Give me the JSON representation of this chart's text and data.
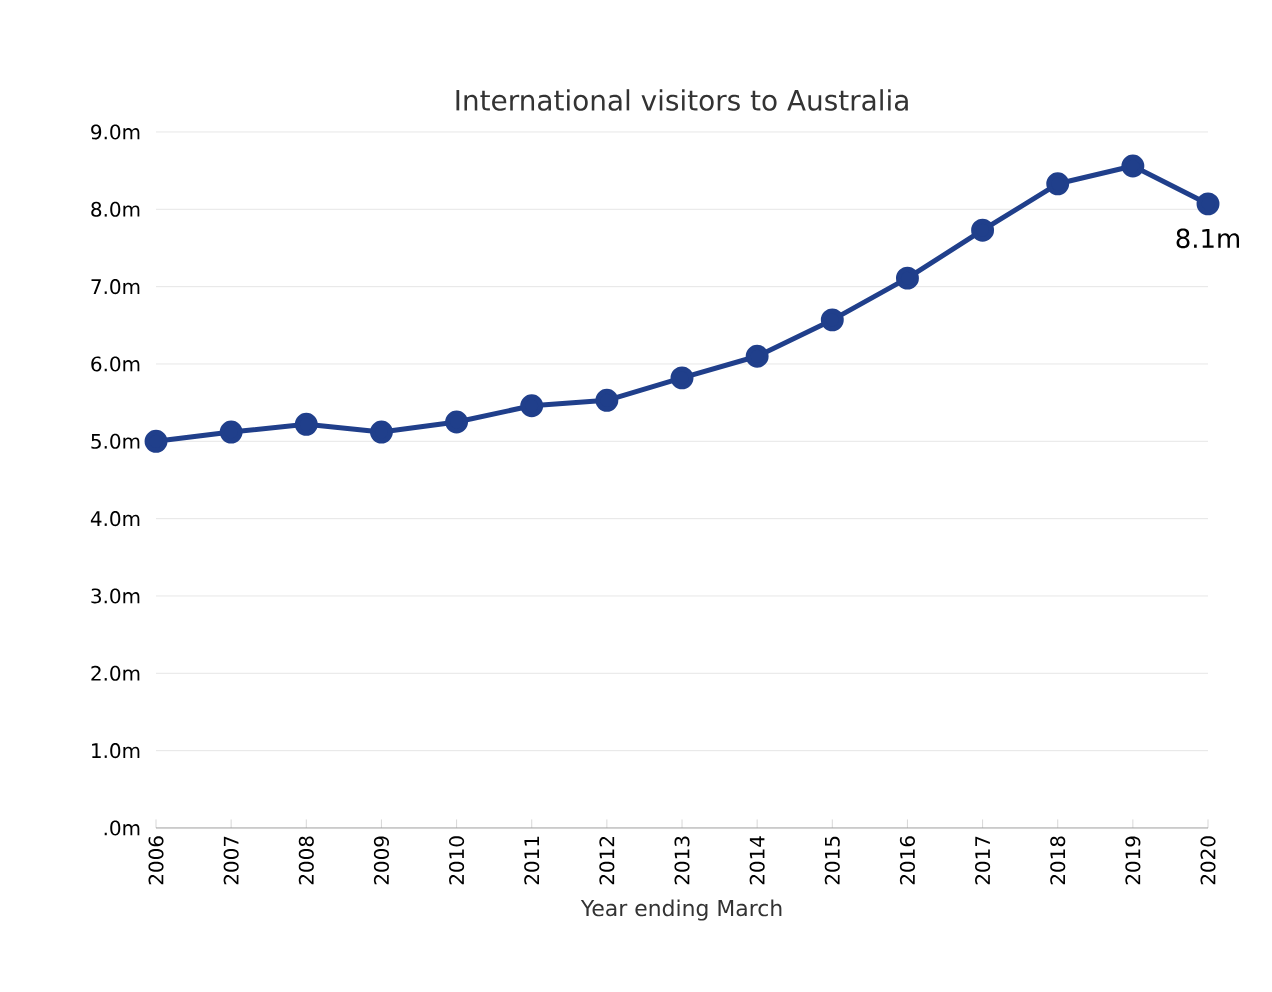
{
  "chart_data": {
    "type": "line",
    "title": "International visitors to Australia",
    "xlabel": "Year ending March",
    "categories": [
      "2006",
      "2007",
      "2008",
      "2009",
      "2010",
      "2011",
      "2012",
      "2013",
      "2014",
      "2015",
      "2016",
      "2017",
      "2018",
      "2019",
      "2020"
    ],
    "series": [
      {
        "color": "#203f8b",
        "values": [
          5.0,
          5.12,
          5.22,
          5.12,
          5.25,
          5.46,
          5.53,
          5.82,
          6.1,
          6.57,
          7.11,
          7.73,
          8.33,
          8.56,
          8.07
        ]
      }
    ],
    "ylim": [
      0,
      9
    ],
    "yticks": [
      {
        "value": 0,
        "label": ".0m"
      },
      {
        "value": 1,
        "label": "1.0m"
      },
      {
        "value": 2,
        "label": "2.0m"
      },
      {
        "value": 3,
        "label": "3.0m"
      },
      {
        "value": 4,
        "label": "4.0m"
      },
      {
        "value": 5,
        "label": "5.0m"
      },
      {
        "value": 6,
        "label": "6.0m"
      },
      {
        "value": 7,
        "label": "7.0m"
      },
      {
        "value": 8,
        "label": "8.0m"
      },
      {
        "value": 9,
        "label": "9.0m"
      }
    ],
    "annotations": [
      {
        "text": "8.1m",
        "x": "2020",
        "y": 8.1
      }
    ],
    "grid": "y",
    "marker": "circle",
    "line_style": "solid"
  }
}
